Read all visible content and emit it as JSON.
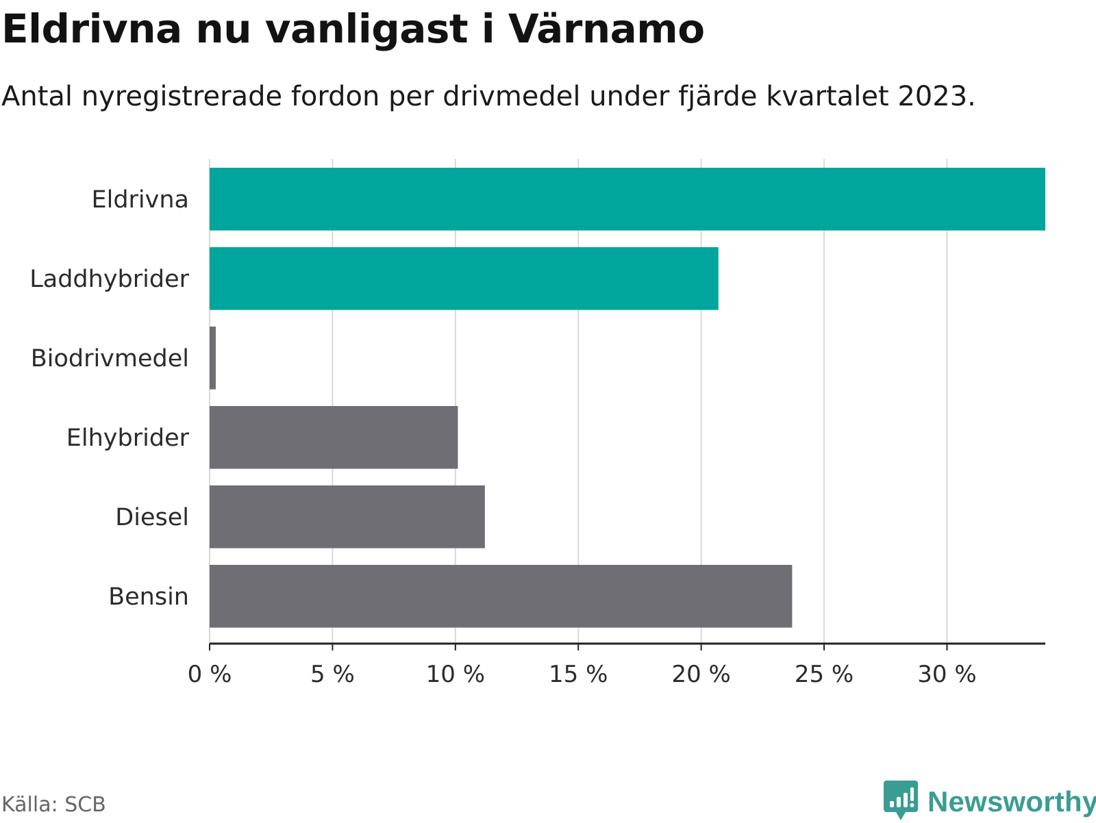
{
  "header": {
    "title": "Eldrivna nu vanligast i Värnamo",
    "subtitle": "Antal nyregistrerade fordon per drivmedel under fjärde kvartalet 2023."
  },
  "footer": {
    "source": "Källa: SCB",
    "brand": "Newsworthy"
  },
  "colors": {
    "highlight": "#00a59b",
    "default": "#6f6e74",
    "grid": "#d9d9d9",
    "axis": "#222222",
    "brand": "#3a9d94"
  },
  "chart_data": {
    "type": "bar",
    "orientation": "horizontal",
    "title": "Eldrivna nu vanligast i Värnamo",
    "subtitle": "Antal nyregistrerade fordon per drivmedel under fjärde kvartalet 2023.",
    "xlabel": "",
    "ylabel": "",
    "unit": "%",
    "xlim": [
      0,
      34
    ],
    "ticks": [
      0,
      5,
      10,
      15,
      20,
      25,
      30
    ],
    "tick_labels": [
      "0 %",
      "5 %",
      "10 %",
      "15 %",
      "20 %",
      "25 %",
      "30 %"
    ],
    "categories": [
      "Eldrivna",
      "Laddhybrider",
      "Biodrivmedel",
      "Elhybrider",
      "Diesel",
      "Bensin"
    ],
    "values": [
      34.0,
      20.7,
      0.25,
      10.1,
      11.2,
      23.7
    ],
    "highlighted": [
      true,
      true,
      false,
      false,
      false,
      false
    ],
    "grid": true
  }
}
